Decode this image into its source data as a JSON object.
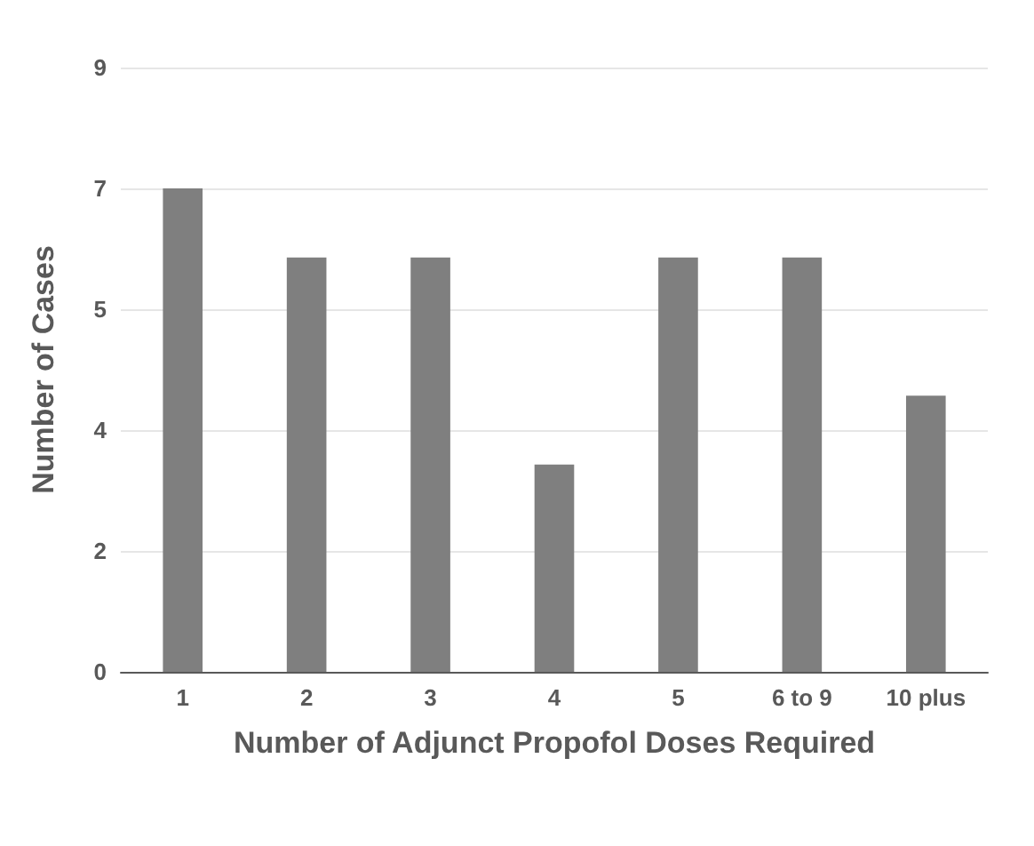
{
  "chart_data": {
    "type": "bar",
    "xlabel": "Number of Adjunct Propofol Doses Required",
    "ylabel": "Number of Cases",
    "categories": [
      "1",
      "2",
      "3",
      "4",
      "5",
      "6 to 9",
      "10 plus"
    ],
    "values": [
      7,
      6,
      6,
      3,
      6,
      6,
      4
    ],
    "color": "#7f7f7f",
    "ylim": [
      0,
      8.75
    ],
    "yticks": [
      {
        "value": 0,
        "label": "0"
      },
      {
        "value": 1.75,
        "label": "2"
      },
      {
        "value": 3.5,
        "label": "4"
      },
      {
        "value": 5.25,
        "label": "5"
      },
      {
        "value": 7,
        "label": "7"
      },
      {
        "value": 8.75,
        "label": "9"
      }
    ],
    "grid": "y"
  }
}
